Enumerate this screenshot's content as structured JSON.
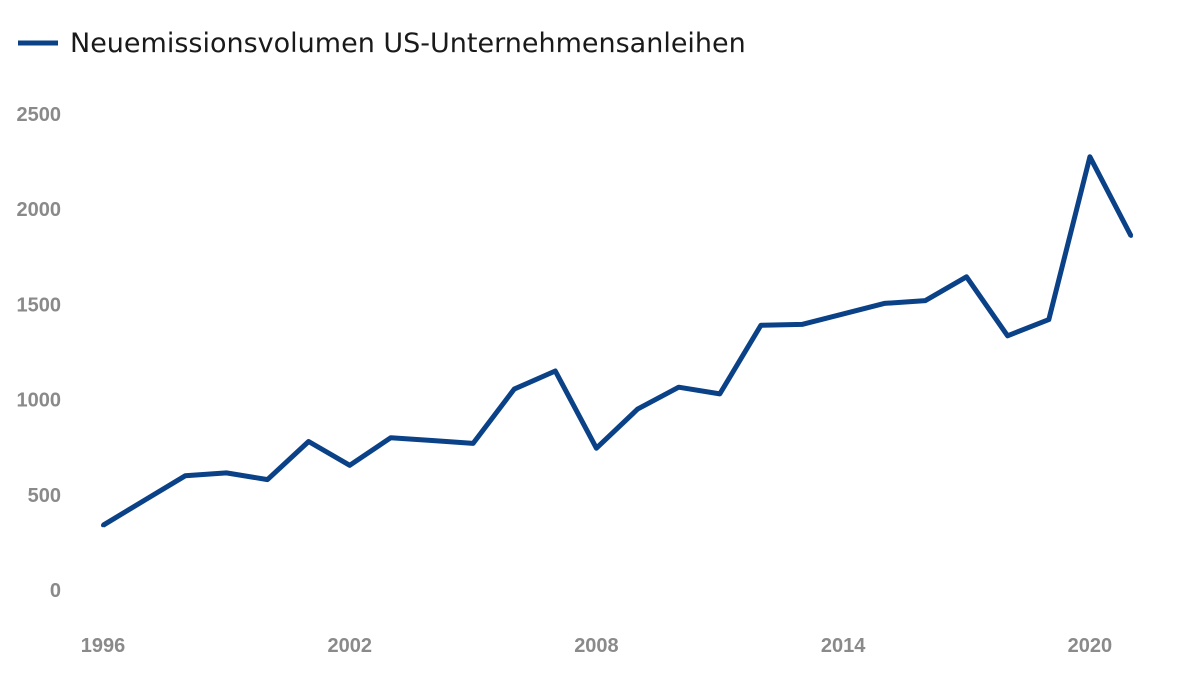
{
  "chart_data": {
    "type": "line",
    "title": "",
    "xlabel": "",
    "ylabel": "",
    "xlim": [
      1996,
      2021
    ],
    "ylim": [
      0,
      2500
    ],
    "x_ticks": [
      "1996",
      "2002",
      "2008",
      "2014",
      "2020"
    ],
    "y_ticks": [
      "0",
      "500",
      "1000",
      "1500",
      "2000",
      "2500"
    ],
    "grid": false,
    "legend_position": "top-left",
    "series": [
      {
        "name": "Neuemissionsvolumen US-Unternehmensanleihen",
        "color": "#0a4187",
        "x": [
          1996,
          1997,
          1998,
          1999,
          2000,
          2001,
          2002,
          2003,
          2004,
          2005,
          2006,
          2007,
          2008,
          2009,
          2010,
          2011,
          2012,
          2013,
          2014,
          2015,
          2016,
          2017,
          2018,
          2019,
          2020,
          2021
        ],
        "values": [
          340,
          470,
          600,
          615,
          580,
          780,
          655,
          800,
          785,
          770,
          1055,
          1150,
          745,
          950,
          1065,
          1030,
          1390,
          1395,
          1450,
          1505,
          1520,
          1645,
          1335,
          1420,
          2275,
          1860
        ]
      }
    ]
  }
}
